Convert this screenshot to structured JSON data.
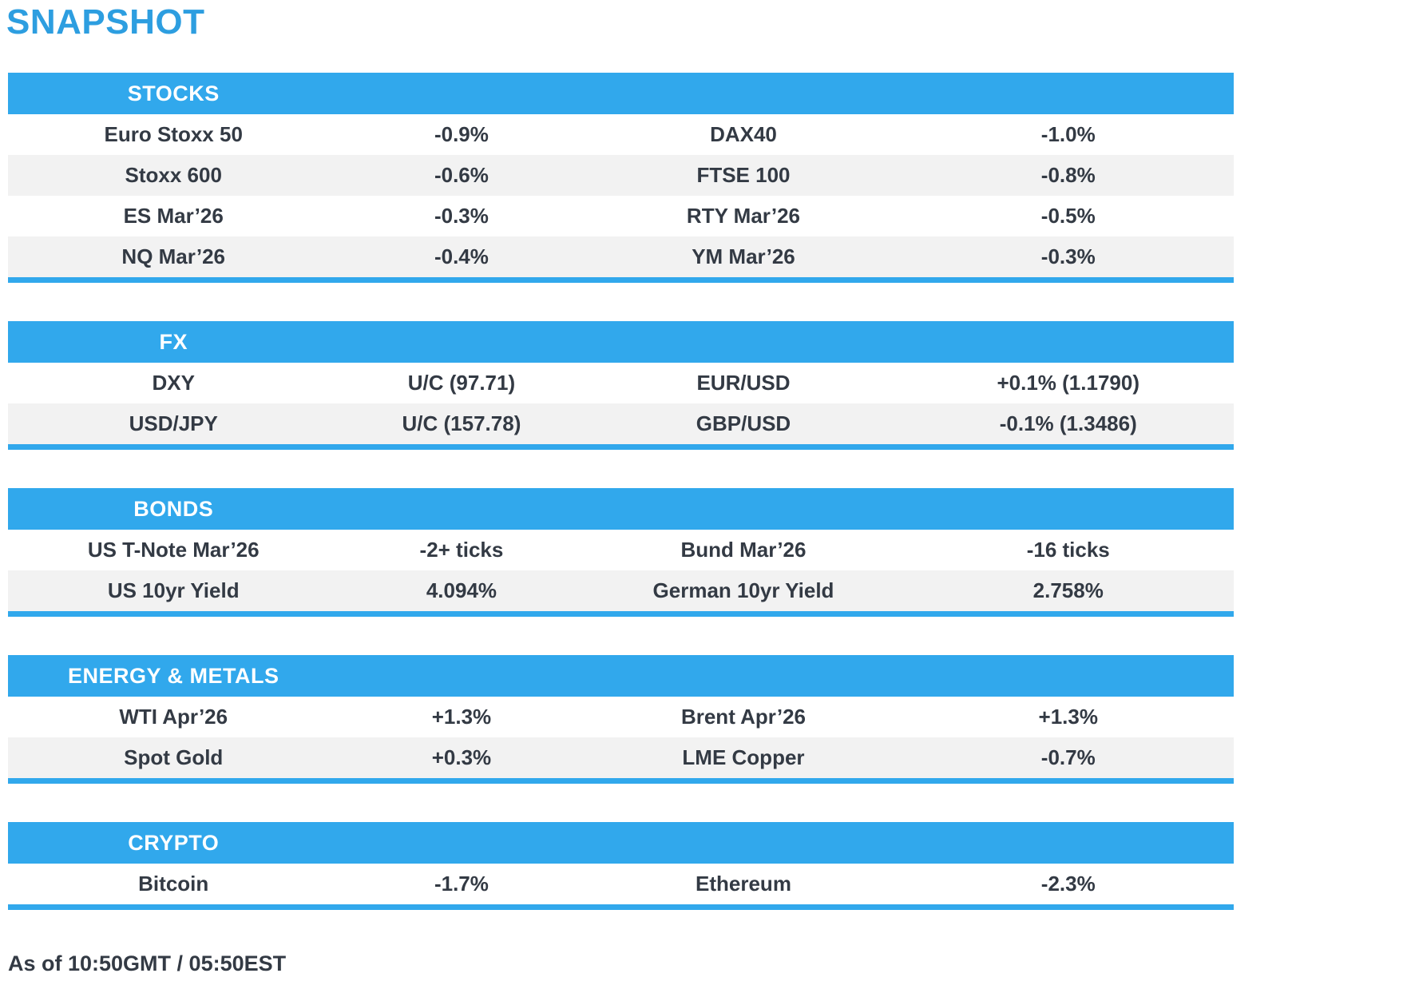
{
  "page": {
    "title": "SNAPSHOT",
    "footer": "As of 10:50GMT / 05:50EST"
  },
  "colors": {
    "accent_blue": "#31a8ec",
    "title_blue": "#2d9ee0",
    "row_alt_gray": "#f2f2f2",
    "text_dark": "#333a44",
    "header_text": "#ffffff"
  },
  "sections": [
    {
      "id": "stocks",
      "header": "STOCKS",
      "rows": [
        [
          "Euro Stoxx 50",
          "-0.9%",
          "DAX40",
          "-1.0%"
        ],
        [
          "Stoxx 600",
          "-0.6%",
          "FTSE 100",
          "-0.8%"
        ],
        [
          "ES Mar’26",
          "-0.3%",
          "RTY Mar’26",
          "-0.5%"
        ],
        [
          "NQ Mar’26",
          "-0.4%",
          "YM Mar’26",
          "-0.3%"
        ]
      ]
    },
    {
      "id": "fx",
      "header": "FX",
      "rows": [
        [
          "DXY",
          "U/C (97.71)",
          "EUR/USD",
          "+0.1% (1.1790)"
        ],
        [
          "USD/JPY",
          "U/C (157.78)",
          "GBP/USD",
          "-0.1% (1.3486)"
        ]
      ]
    },
    {
      "id": "bonds",
      "header": "BONDS",
      "rows": [
        [
          "US T-Note Mar’26",
          "-2+ ticks",
          "Bund Mar’26",
          "-16 ticks"
        ],
        [
          "US 10yr Yield",
          "4.094%",
          "German 10yr Yield",
          "2.758%"
        ]
      ]
    },
    {
      "id": "energy-metals",
      "header": "ENERGY & METALS",
      "rows": [
        [
          "WTI Apr’26",
          "+1.3%",
          "Brent Apr’26",
          "+1.3%"
        ],
        [
          "Spot Gold",
          "+0.3%",
          "LME Copper",
          "-0.7%"
        ]
      ]
    },
    {
      "id": "crypto",
      "header": "CRYPTO",
      "rows": [
        [
          "Bitcoin",
          "-1.7%",
          "Ethereum",
          "-2.3%"
        ]
      ]
    }
  ]
}
